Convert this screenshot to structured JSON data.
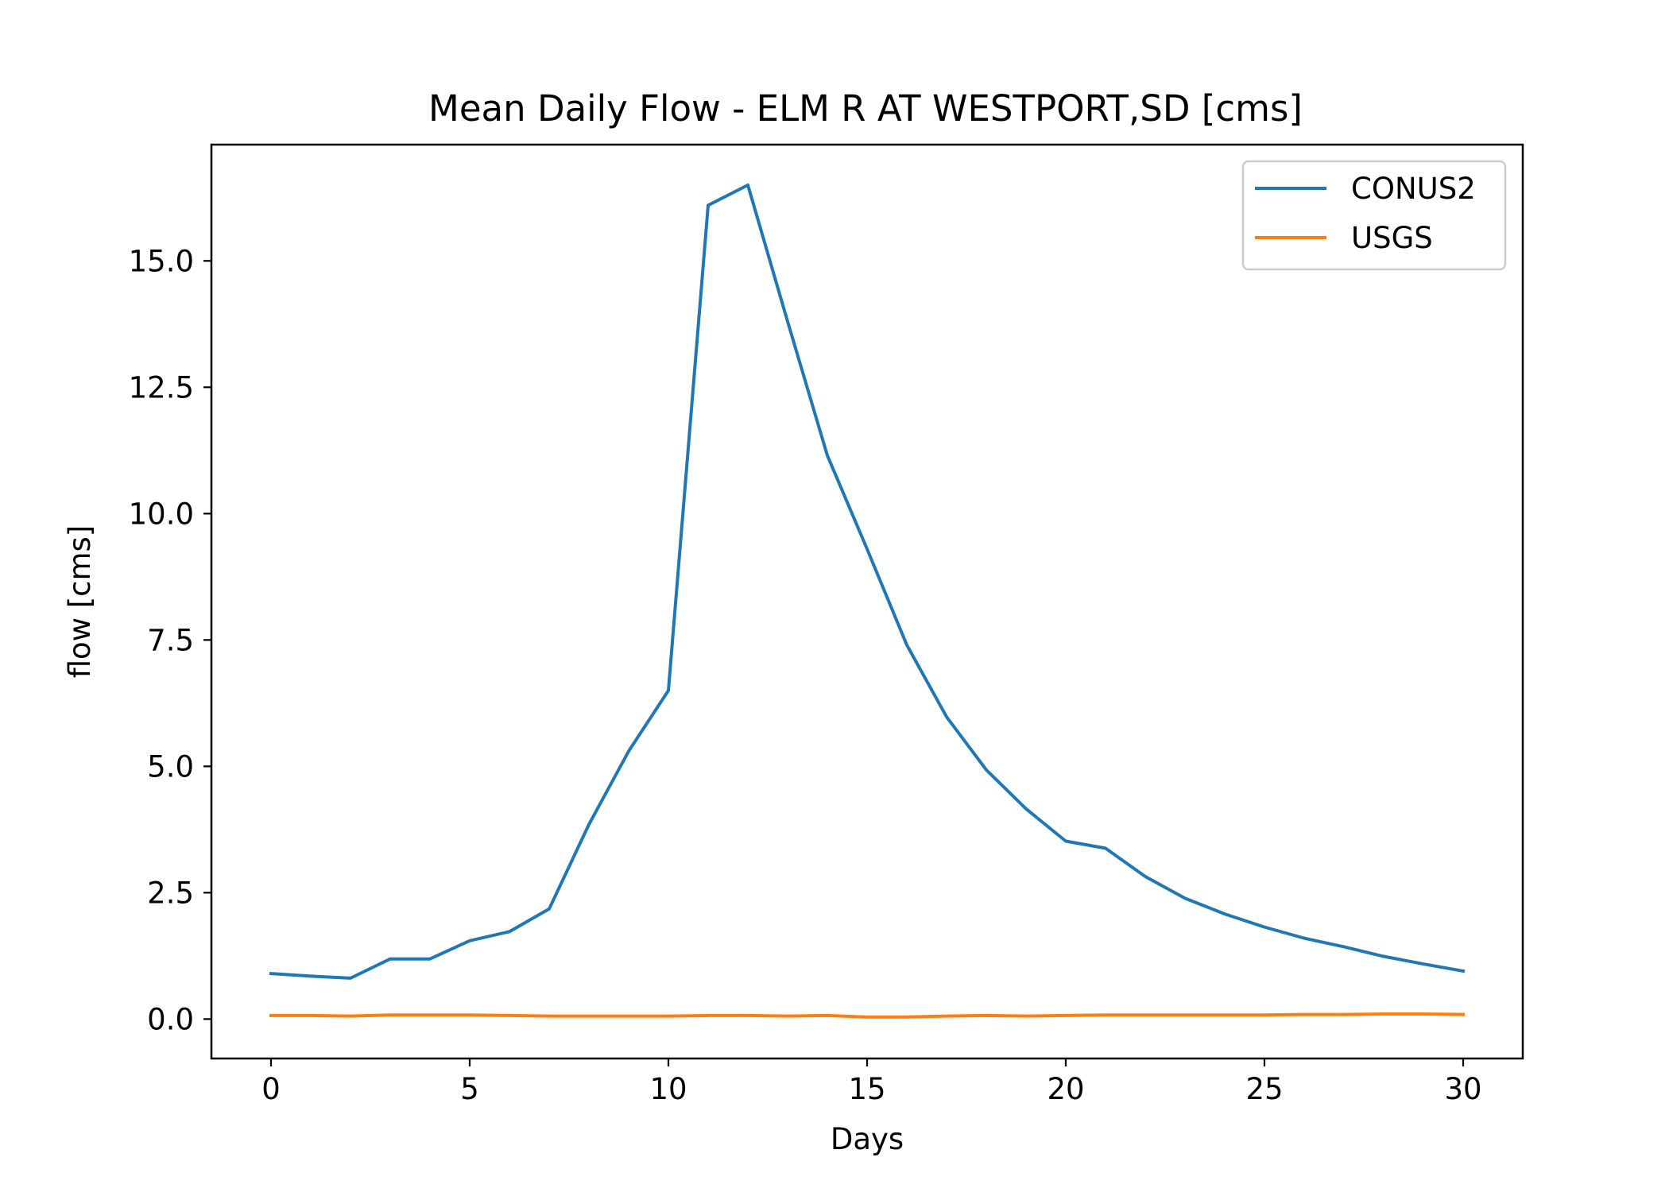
{
  "chart_data": {
    "type": "line",
    "title": "Mean Daily Flow - ELM R AT WESTPORT,SD [cms]",
    "xlabel": "Days",
    "ylabel": "flow [cms]",
    "xlim": [
      -1.5,
      31.5
    ],
    "ylim": [
      -0.78,
      17.3
    ],
    "xticks": [
      0,
      5,
      10,
      15,
      20,
      25,
      30
    ],
    "xtick_labels": [
      "0",
      "5",
      "10",
      "15",
      "20",
      "25",
      "30"
    ],
    "yticks": [
      0.0,
      2.5,
      5.0,
      7.5,
      10.0,
      12.5,
      15.0
    ],
    "ytick_labels": [
      "0.0",
      "2.5",
      "5.0",
      "7.5",
      "10.0",
      "12.5",
      "15.0"
    ],
    "grid": false,
    "legend_position": "top-right",
    "x": [
      0,
      1,
      2,
      3,
      4,
      5,
      6,
      7,
      8,
      9,
      10,
      11,
      12,
      13,
      14,
      15,
      16,
      17,
      18,
      19,
      20,
      21,
      22,
      23,
      24,
      25,
      26,
      27,
      28,
      29,
      30
    ],
    "series": [
      {
        "name": "CONUS2",
        "color": "#1f77b4",
        "values": [
          0.9,
          0.85,
          0.81,
          1.19,
          1.19,
          1.55,
          1.73,
          2.18,
          3.85,
          5.3,
          6.5,
          16.1,
          16.5,
          13.8,
          11.15,
          9.3,
          7.4,
          5.98,
          4.93,
          4.16,
          3.52,
          3.38,
          2.82,
          2.39,
          2.08,
          1.82,
          1.6,
          1.43,
          1.24,
          1.09,
          0.95
        ]
      },
      {
        "name": "USGS",
        "color": "#ff7f0e",
        "values": [
          0.07,
          0.07,
          0.06,
          0.08,
          0.08,
          0.08,
          0.07,
          0.06,
          0.06,
          0.06,
          0.06,
          0.07,
          0.07,
          0.06,
          0.07,
          0.04,
          0.04,
          0.06,
          0.07,
          0.06,
          0.07,
          0.08,
          0.08,
          0.08,
          0.08,
          0.08,
          0.09,
          0.09,
          0.1,
          0.1,
          0.09
        ]
      }
    ]
  }
}
